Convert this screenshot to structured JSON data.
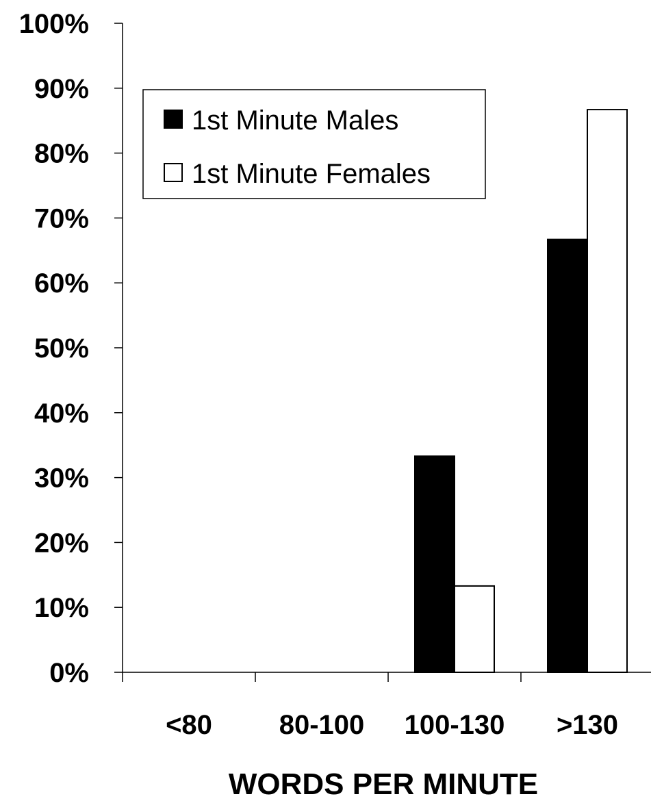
{
  "chart_data": {
    "type": "bar",
    "categories": [
      "<80",
      "80-100",
      "100-130",
      ">130"
    ],
    "series": [
      {
        "name": "1st Minute Males",
        "values": [
          0,
          0,
          33.3,
          66.7
        ],
        "fill": "#000000"
      },
      {
        "name": "1st Minute Females",
        "values": [
          0,
          0,
          13.3,
          86.7
        ],
        "fill": "#ffffff"
      }
    ],
    "xlabel": "WORDS PER MINUTE",
    "ylabel": "",
    "ylim": [
      0,
      100
    ],
    "ytick_values": [
      0,
      10,
      20,
      30,
      40,
      50,
      60,
      70,
      80,
      90,
      100
    ],
    "ytick_labels": [
      "0%",
      "10%",
      "20%",
      "30%",
      "40%",
      "50%",
      "60%",
      "70%",
      "80%",
      "90%",
      "100%"
    ],
    "grid": false,
    "legend_position": "top-left"
  }
}
